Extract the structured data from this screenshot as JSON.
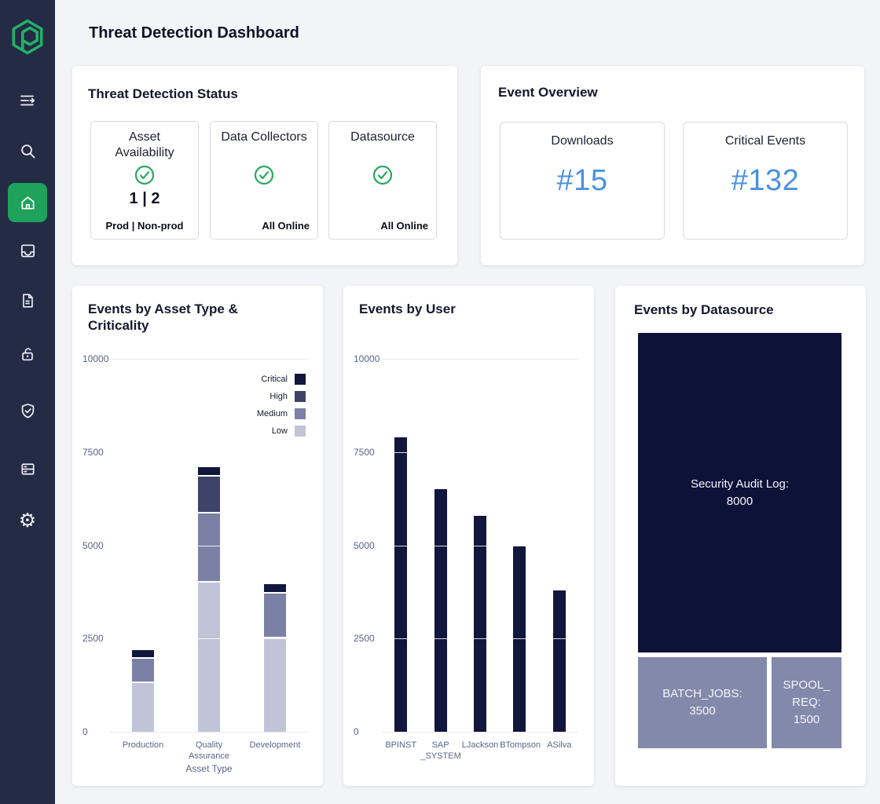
{
  "app": {
    "title": "Threat Detection Dashboard"
  },
  "sidebar": {
    "logo_icon": "pathlock-hexagon-logo",
    "items": [
      {
        "name": "menu",
        "icon": "menu-arrow-icon",
        "active": false
      },
      {
        "name": "search",
        "icon": "search-icon",
        "active": false
      },
      {
        "name": "home",
        "icon": "home-icon",
        "active": true
      },
      {
        "name": "inbox",
        "icon": "inbox-tray-icon",
        "active": false
      },
      {
        "name": "documents",
        "icon": "document-icon",
        "active": false
      },
      {
        "name": "access",
        "icon": "padlock-icon",
        "active": false
      },
      {
        "name": "security",
        "icon": "shield-check-icon",
        "active": false
      },
      {
        "name": "servers",
        "icon": "server-rack-icon",
        "active": false
      },
      {
        "name": "settings",
        "icon": "gear-icon",
        "active": false
      }
    ]
  },
  "status_card": {
    "title": "Threat Detection Status",
    "tiles": [
      {
        "title": "Asset Availability",
        "status_icon": "check-circle-icon",
        "value": "1 | 2",
        "footer": "Prod | Non-prod"
      },
      {
        "title": "Data Collectors",
        "status_icon": "check-circle-icon",
        "value": "",
        "footer": "All Online"
      },
      {
        "title": "Datasource",
        "status_icon": "check-circle-icon",
        "value": "",
        "footer": "All Online"
      }
    ]
  },
  "overview_card": {
    "title": "Event Overview",
    "tiles": [
      {
        "title": "Downloads",
        "value": "#15"
      },
      {
        "title": "Critical Events",
        "value": "#132"
      }
    ]
  },
  "chart_data": [
    {
      "type": "bar",
      "stacked": true,
      "title": "Events by Asset Type & Criticality",
      "xlabel": "Asset Type",
      "ylabel": "",
      "categories": [
        "Production",
        "Quality Assurance",
        "Development"
      ],
      "series": [
        {
          "name": "Critical",
          "color": "#11163d",
          "values": [
            250,
            250,
            250
          ]
        },
        {
          "name": "High",
          "color": "#3e4468",
          "values": [
            0,
            1000,
            0
          ]
        },
        {
          "name": "Medium",
          "color": "#7b81a4",
          "values": [
            650,
            1850,
            1200
          ]
        },
        {
          "name": "Low",
          "color": "#c1c4d7",
          "values": [
            1300,
            4000,
            2500
          ]
        }
      ],
      "ylim": [
        0,
        10000
      ],
      "yticks": [
        0,
        2500,
        5000,
        7500,
        10000
      ],
      "grid": true,
      "legend_position": "top-right"
    },
    {
      "type": "bar",
      "stacked": false,
      "title": "Events by User",
      "xlabel": "",
      "ylabel": "",
      "categories": [
        "BPINST",
        "SAP_SYSTEM",
        "LJackson",
        "BTompson",
        "ASilva"
      ],
      "categories_display": [
        "BPINST",
        "SAP\n_SYSTEM",
        "LJackson",
        "BTompson",
        "ASilva"
      ],
      "values": [
        7900,
        6500,
        5800,
        5000,
        3800
      ],
      "bar_color": "#11163d",
      "ylim": [
        0,
        10000
      ],
      "yticks": [
        0,
        2500,
        5000,
        7500,
        10000
      ],
      "grid": true,
      "legend_position": "none"
    },
    {
      "type": "treemap",
      "title": "Events by Datasource",
      "items": [
        {
          "name": "Security Audit Log",
          "value": 8000,
          "display": "Security Audit Log:\n8000",
          "color": "#0d1238"
        },
        {
          "name": "BATCH_JOBS",
          "value": 3500,
          "display": "BATCH_JOBS:\n3500",
          "color": "#8289aa"
        },
        {
          "name": "SPOOL_REQ",
          "value": 1500,
          "display": "SPOOL_\nREQ:\n1500",
          "color": "#8289aa"
        }
      ]
    }
  ],
  "colors": {
    "sidebar_bg": "#242b45",
    "active_green": "#1fa25b",
    "logo_green": "#22b168",
    "check_green": "#27a95c",
    "metric_blue": "#4a91e2",
    "critical": "#11163d",
    "high": "#3e4468",
    "medium": "#7b81a4",
    "low": "#c1c4d7",
    "treemap_navy": "#0d1238",
    "treemap_slate": "#8289aa",
    "axis_text": "#5d6488",
    "page_bg": "#f3f4f8"
  }
}
